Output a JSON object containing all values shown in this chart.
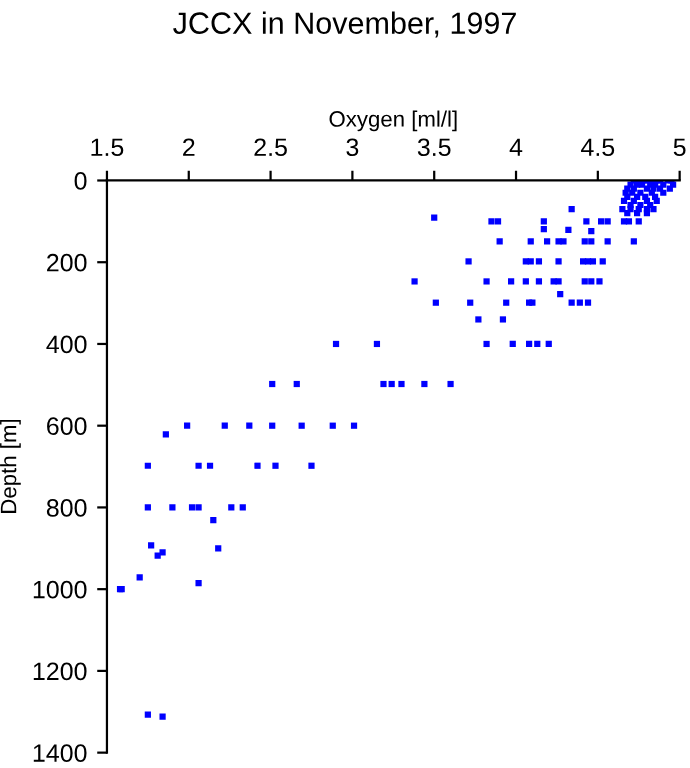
{
  "chart_data": {
    "type": "scatter",
    "title": "JCCX in November, 1997",
    "xlabel": "Oxygen [ml/l]",
    "ylabel": "Depth [m]",
    "xlim": [
      1.5,
      5
    ],
    "xticks": [
      1.5,
      2,
      2.5,
      3,
      3.5,
      4,
      4.5,
      5
    ],
    "ylim": [
      1400,
      0
    ],
    "yticks": [
      0,
      200,
      400,
      600,
      800,
      1000,
      1200,
      1400
    ],
    "marker": "square",
    "grid": false,
    "series": [
      {
        "color": "#0000ff",
        "x": [
          4.72,
          4.75,
          4.78,
          4.8,
          4.83,
          4.86,
          4.88,
          4.93,
          4.95,
          4.7,
          4.74,
          4.77,
          4.82,
          4.85,
          4.9,
          4.96,
          4.68,
          4.72,
          4.8,
          4.84,
          4.88,
          4.94,
          4.67,
          4.71,
          4.76,
          4.83,
          4.9,
          4.68,
          4.74,
          4.79,
          4.85,
          4.66,
          4.72,
          4.8,
          4.86,
          4.7,
          4.76,
          4.82,
          4.65,
          4.7,
          4.75,
          4.8,
          4.84,
          4.68,
          4.74,
          4.8,
          4.34,
          3.5,
          3.85,
          3.89,
          4.17,
          4.43,
          4.52,
          4.56,
          4.66,
          4.69,
          4.75,
          4.17,
          4.32,
          4.46,
          3.9,
          4.09,
          4.19,
          4.26,
          4.29,
          4.42,
          4.46,
          4.56,
          4.72,
          3.71,
          4.06,
          4.09,
          4.14,
          4.26,
          4.41,
          4.44,
          4.47,
          4.53,
          3.38,
          3.82,
          3.97,
          4.06,
          4.14,
          4.23,
          4.26,
          4.42,
          4.46,
          4.51,
          4.27,
          3.51,
          3.72,
          3.94,
          4.08,
          4.1,
          4.34,
          4.39,
          4.44,
          3.77,
          3.92,
          2.9,
          3.15,
          3.82,
          3.98,
          4.08,
          4.13,
          4.2,
          2.51,
          2.66,
          3.19,
          3.24,
          3.3,
          3.44,
          3.6,
          1.99,
          2.22,
          2.37,
          2.51,
          2.69,
          2.88,
          3.01,
          1.86,
          1.75,
          2.06,
          2.13,
          2.42,
          2.53,
          2.75,
          1.75,
          1.9,
          2.02,
          2.06,
          2.26,
          2.33,
          2.15,
          1.77,
          1.81,
          1.84,
          2.18,
          1.7,
          2.06,
          1.58,
          1.59,
          1.75,
          1.84
        ],
        "values": [
          0,
          0,
          0,
          0,
          0,
          0,
          0,
          0,
          0,
          10,
          10,
          10,
          10,
          10,
          10,
          10,
          20,
          20,
          20,
          20,
          20,
          20,
          30,
          30,
          30,
          30,
          30,
          40,
          40,
          40,
          40,
          50,
          50,
          50,
          50,
          60,
          60,
          60,
          70,
          70,
          70,
          70,
          70,
          80,
          80,
          80,
          70,
          91,
          100,
          100,
          100,
          100,
          100,
          100,
          100,
          100,
          100,
          119,
          121,
          124,
          149,
          149,
          149,
          149,
          149,
          149,
          149,
          149,
          149,
          198,
          198,
          198,
          198,
          198,
          198,
          198,
          198,
          198,
          247,
          247,
          247,
          247,
          247,
          247,
          247,
          247,
          247,
          247,
          278,
          299,
          299,
          299,
          299,
          299,
          299,
          299,
          299,
          340,
          340,
          400,
          400,
          400,
          400,
          400,
          400,
          400,
          498,
          498,
          498,
          498,
          498,
          498,
          498,
          600,
          600,
          600,
          600,
          600,
          600,
          600,
          621,
          698,
          698,
          698,
          698,
          698,
          698,
          800,
          800,
          800,
          800,
          800,
          800,
          831,
          893,
          918,
          910,
          900,
          971,
          985,
          1000,
          1000,
          1307,
          1312
        ]
      }
    ]
  }
}
